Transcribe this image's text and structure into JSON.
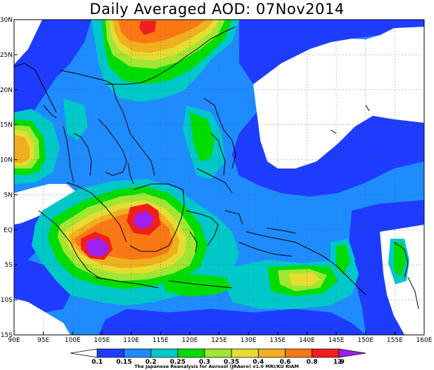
{
  "title": "Daily Averaged AOD: 07Nov2014",
  "map": {
    "lon_range": [
      90,
      160
    ],
    "lat_range": [
      -15,
      30
    ],
    "x_ticks": [
      {
        "lon": 90,
        "label": "90E"
      },
      {
        "lon": 95,
        "label": "95E"
      },
      {
        "lon": 100,
        "label": "100E"
      },
      {
        "lon": 105,
        "label": "105E"
      },
      {
        "lon": 110,
        "label": "110E"
      },
      {
        "lon": 115,
        "label": "115E"
      },
      {
        "lon": 120,
        "label": "120E"
      },
      {
        "lon": 125,
        "label": "125E"
      },
      {
        "lon": 130,
        "label": "130E"
      },
      {
        "lon": 135,
        "label": "135E"
      },
      {
        "lon": 140,
        "label": "140E"
      },
      {
        "lon": 145,
        "label": "145E"
      },
      {
        "lon": 150,
        "label": "150E"
      },
      {
        "lon": 155,
        "label": "155E"
      },
      {
        "lon": 160,
        "label": "160E"
      }
    ],
    "y_ticks": [
      {
        "lat": 30,
        "label": "30N"
      },
      {
        "lat": 25,
        "label": "25N"
      },
      {
        "lat": 20,
        "label": "20N"
      },
      {
        "lat": 15,
        "label": "15N"
      },
      {
        "lat": 10,
        "label": "10N"
      },
      {
        "lat": 5,
        "label": "5N"
      },
      {
        "lat": 0,
        "label": "EQ"
      },
      {
        "lat": -5,
        "label": "5S"
      },
      {
        "lat": -10,
        "label": "10S"
      },
      {
        "lat": -15,
        "label": "15S"
      }
    ]
  },
  "colorbar": {
    "labels": [
      "0.1",
      "0.15",
      "0.2",
      "0.25",
      "0.3",
      "0.35",
      "0.4",
      "0.6",
      "0.8",
      "1.9",
      "3"
    ],
    "colors": [
      "#ffffff",
      "#1e3cff",
      "#1e8cff",
      "#00c8c8",
      "#00dc00",
      "#a0e632",
      "#e6dc32",
      "#f0af1e",
      "#fa7814",
      "#f01e1e",
      "#a020f0"
    ]
  },
  "credit": "The Japanese Reanalysis for Aerosol (JRAero) v1.0 MRI/KU RIAM"
}
